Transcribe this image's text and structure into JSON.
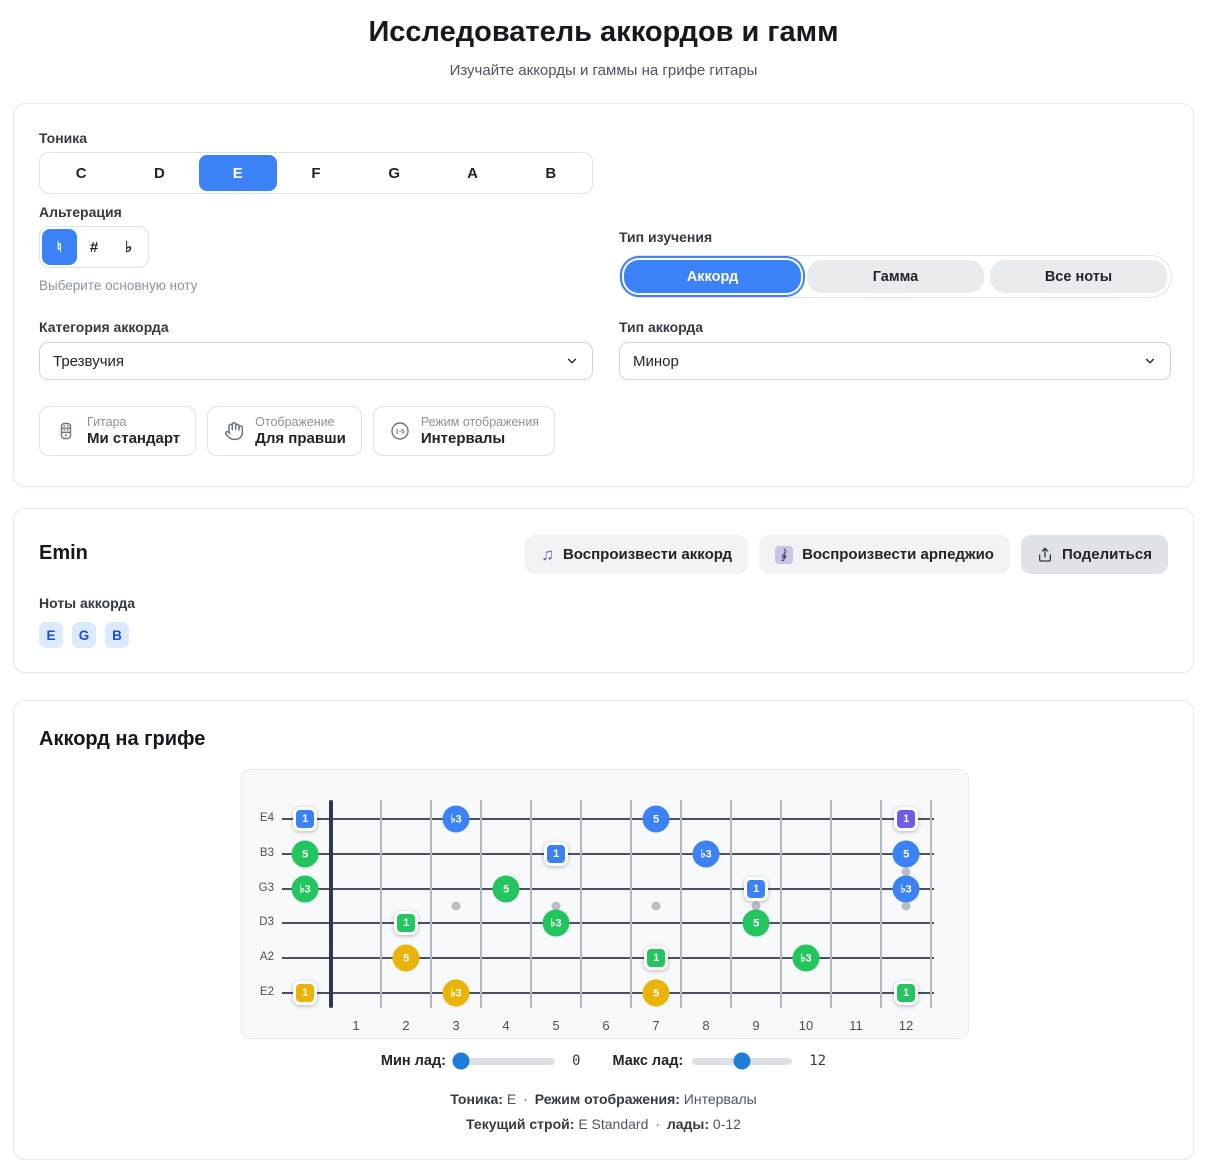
{
  "header": {
    "title": "Исследователь аккордов и гамм",
    "subtitle": "Изучайте аккорды и гаммы на грифе гитары"
  },
  "controls": {
    "tonic": {
      "label": "Тоника",
      "options": [
        "C",
        "D",
        "E",
        "F",
        "G",
        "A",
        "B"
      ],
      "selected": "E"
    },
    "alteration": {
      "label": "Альтерация",
      "helper": "Выберите основную ноту",
      "options": [
        {
          "key": "natural",
          "label": "♮"
        },
        {
          "key": "sharp",
          "label": "#"
        },
        {
          "key": "flat",
          "label": "♭"
        }
      ],
      "selected": "natural"
    },
    "study_type": {
      "label": "Тип изучения",
      "options": [
        {
          "key": "chord",
          "label": "Аккорд"
        },
        {
          "key": "scale",
          "label": "Гамма"
        },
        {
          "key": "all-notes",
          "label": "Все ноты"
        }
      ],
      "selected": "chord"
    },
    "chord_category": {
      "label": "Категория аккорда",
      "value": "Трезвучия"
    },
    "chord_type": {
      "label": "Тип аккорда",
      "value": "Минор"
    },
    "info_chips": [
      {
        "key": "tuning",
        "icon": "guitar-icon",
        "title": "Гитара",
        "value": "Ми стандарт"
      },
      {
        "key": "orientation",
        "icon": "hand-icon",
        "title": "Отображение",
        "value": "Для правши"
      },
      {
        "key": "display-mode",
        "icon": "intervals-icon",
        "title": "Режим отображения",
        "value": "Интервалы"
      }
    ]
  },
  "chord": {
    "name": "Emin",
    "play_chord": "Воспроизвести аккорд",
    "play_arpeggio": "Воспроизвести арпеджио",
    "share": "Поделиться",
    "notes_label": "Ноты аккорда",
    "notes": [
      "E",
      "G",
      "B"
    ]
  },
  "fretboard": {
    "title": "Аккорд на грифе",
    "strings": [
      "E4",
      "B3",
      "G3",
      "D3",
      "A2",
      "E2"
    ],
    "fret_numbers": [
      1,
      2,
      3,
      4,
      5,
      6,
      7,
      8,
      9,
      10,
      11,
      12
    ],
    "inlay_dots": [
      {
        "fret": 3,
        "between": "G3-D3"
      },
      {
        "fret": 5,
        "between": "G3-D3"
      },
      {
        "fret": 7,
        "between": "G3-D3"
      },
      {
        "fret": 9,
        "between": "G3-D3"
      },
      {
        "fret": 12,
        "between": "B3-G3"
      },
      {
        "fret": 12,
        "between": "G3-D3"
      }
    ],
    "colors": {
      "blue": "#3b82f6",
      "green": "#22c55e",
      "yellow": "#eab308",
      "purple": "#6c5ce7"
    },
    "markers": [
      {
        "string": "E4",
        "fret": 0,
        "label": "1",
        "shape": "square",
        "color": "blue"
      },
      {
        "string": "E4",
        "fret": 3,
        "label": "♭3",
        "shape": "circle",
        "color": "blue"
      },
      {
        "string": "E4",
        "fret": 7,
        "label": "5",
        "shape": "circle",
        "color": "blue"
      },
      {
        "string": "E4",
        "fret": 12,
        "label": "1",
        "shape": "square",
        "color": "purple"
      },
      {
        "string": "B3",
        "fret": 0,
        "label": "5",
        "shape": "circle",
        "color": "green"
      },
      {
        "string": "B3",
        "fret": 5,
        "label": "1",
        "shape": "square",
        "color": "blue"
      },
      {
        "string": "B3",
        "fret": 8,
        "label": "♭3",
        "shape": "circle",
        "color": "blue"
      },
      {
        "string": "B3",
        "fret": 12,
        "label": "5",
        "shape": "circle",
        "color": "blue"
      },
      {
        "string": "G3",
        "fret": 0,
        "label": "♭3",
        "shape": "circle",
        "color": "green"
      },
      {
        "string": "G3",
        "fret": 4,
        "label": "5",
        "shape": "circle",
        "color": "green"
      },
      {
        "string": "G3",
        "fret": 9,
        "label": "1",
        "shape": "square",
        "color": "blue"
      },
      {
        "string": "G3",
        "fret": 12,
        "label": "♭3",
        "shape": "circle",
        "color": "blue"
      },
      {
        "string": "D3",
        "fret": 2,
        "label": "1",
        "shape": "square",
        "color": "green"
      },
      {
        "string": "D3",
        "fret": 5,
        "label": "♭3",
        "shape": "circle",
        "color": "green"
      },
      {
        "string": "D3",
        "fret": 9,
        "label": "5",
        "shape": "circle",
        "color": "green"
      },
      {
        "string": "A2",
        "fret": 2,
        "label": "5",
        "shape": "circle",
        "color": "yellow"
      },
      {
        "string": "A2",
        "fret": 7,
        "label": "1",
        "shape": "square",
        "color": "green"
      },
      {
        "string": "A2",
        "fret": 10,
        "label": "♭3",
        "shape": "circle",
        "color": "green"
      },
      {
        "string": "E2",
        "fret": 0,
        "label": "1",
        "shape": "square",
        "color": "yellow"
      },
      {
        "string": "E2",
        "fret": 3,
        "label": "♭3",
        "shape": "circle",
        "color": "yellow"
      },
      {
        "string": "E2",
        "fret": 7,
        "label": "5",
        "shape": "circle",
        "color": "yellow"
      },
      {
        "string": "E2",
        "fret": 12,
        "label": "1",
        "shape": "square",
        "color": "green"
      }
    ],
    "min_fret": {
      "label": "Мин лад:",
      "value": "0",
      "percent": 6
    },
    "max_fret": {
      "label": "Макс лад:",
      "value": "12",
      "percent": 50
    },
    "status": {
      "tonic_label": "Тоника:",
      "tonic_value": "E",
      "sep": "·",
      "mode_label": "Режим отображения:",
      "mode_value": "Интервалы",
      "tuning_label": "Текущий строй:",
      "tuning_value": "E Standard",
      "frets_label": "лады:",
      "frets_value": "0-12"
    }
  }
}
